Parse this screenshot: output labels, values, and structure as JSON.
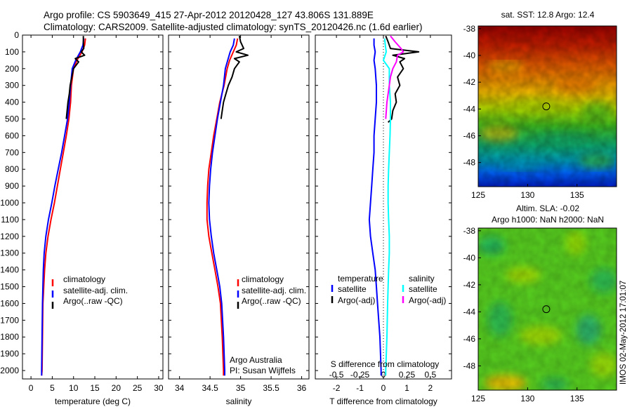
{
  "title": {
    "line1": "Argo profile: CS 5903649_415 27-Apr-2012 20120428_127 43.806S 131.889E",
    "line2": "Climatology: CARS2009. Satellite-adjusted climatology: synTS_20120426.nc (1.6d earlier)"
  },
  "colors": {
    "climatology": "#ff0000",
    "satellite": "#0000ff",
    "argo": "#000000",
    "satellite_salinity": "#00ffff",
    "argo_salinity": "#ff00ff"
  },
  "chart_data": [
    {
      "type": "line",
      "name": "temperature",
      "xlabel": "temperature (deg C)",
      "ylim": [
        2050,
        0
      ],
      "xlim": [
        -2,
        31
      ],
      "xticks": [
        "0",
        "5",
        "10",
        "15",
        "20",
        "25",
        "30"
      ],
      "yticks": [
        "0",
        "100",
        "200",
        "300",
        "400",
        "500",
        "600",
        "700",
        "800",
        "900",
        "1000",
        "1100",
        "1200",
        "1300",
        "1400",
        "1500",
        "1600",
        "1700",
        "1800",
        "1900",
        "2000"
      ],
      "legend": [
        "climatology",
        "satellite-adj. clim.",
        "Argo(..raw -QC)"
      ],
      "series": [
        {
          "name": "climatology",
          "color": "#ff0000",
          "x": [
            12.8,
            12.6,
            12.0,
            10.8,
            10.0,
            9.5,
            9.3,
            8.9,
            8.3,
            7.6,
            6.9,
            6.2,
            5.5,
            4.7,
            4.0,
            3.5,
            3.2,
            3.0,
            2.8,
            2.7,
            2.6,
            2.5
          ],
          "y": [
            20,
            60,
            100,
            150,
            200,
            300,
            400,
            500,
            600,
            700,
            800,
            900,
            1000,
            1100,
            1200,
            1300,
            1400,
            1500,
            1600,
            1800,
            2000,
            2030
          ]
        },
        {
          "name": "satellite-adj. clim.",
          "color": "#0000ff",
          "x": [
            12.4,
            12.2,
            11.6,
            10.5,
            9.7,
            9.3,
            9.0,
            8.6,
            7.9,
            7.2,
            6.4,
            5.6,
            4.9,
            4.1,
            3.5,
            3.1,
            2.9,
            2.8,
            2.7,
            2.6,
            2.5,
            2.5
          ],
          "y": [
            20,
            60,
            100,
            150,
            200,
            300,
            400,
            500,
            600,
            700,
            800,
            900,
            1000,
            1100,
            1200,
            1300,
            1400,
            1500,
            1600,
            1800,
            2000,
            2030
          ]
        },
        {
          "name": "Argo(..raw -QC)",
          "color": "#000000",
          "x": [
            12.3,
            12.3,
            12.4,
            11.8,
            12.6,
            10.4,
            11.2,
            10.0,
            9.6,
            9.2,
            9.0,
            8.7,
            8.5,
            8.3
          ],
          "y": [
            5,
            40,
            80,
            100,
            120,
            140,
            160,
            200,
            250,
            300,
            350,
            400,
            450,
            500
          ]
        }
      ]
    },
    {
      "type": "line",
      "name": "salinity",
      "xlabel": "salinity",
      "ylim": [
        2050,
        0
      ],
      "xlim": [
        33.82,
        36.12
      ],
      "xticks": [
        "34",
        "34.5",
        "35",
        "35.5",
        "36"
      ],
      "legend": [
        "climatology",
        "satellite-adj. clim.",
        "Argo(..raw -QC)"
      ],
      "annotation": [
        "Argo Australia",
        "PI: Susan Wijffels"
      ],
      "series": [
        {
          "name": "climatology",
          "color": "#ff0000",
          "x": [
            34.95,
            34.93,
            34.88,
            34.82,
            34.78,
            34.73,
            34.66,
            34.61,
            34.56,
            34.52,
            34.48,
            34.46,
            34.45,
            34.45,
            34.48,
            34.53,
            34.58,
            34.63,
            34.67,
            34.7,
            34.72,
            34.72
          ],
          "y": [
            20,
            60,
            100,
            150,
            200,
            300,
            400,
            500,
            600,
            700,
            800,
            900,
            1000,
            1100,
            1200,
            1300,
            1400,
            1500,
            1600,
            1800,
            2000,
            2030
          ]
        },
        {
          "name": "satellite-adj. clim.",
          "color": "#0000ff",
          "x": [
            34.9,
            34.88,
            34.83,
            34.79,
            34.75,
            34.72,
            34.67,
            34.62,
            34.58,
            34.54,
            34.51,
            34.49,
            34.48,
            34.49,
            34.52,
            34.56,
            34.61,
            34.66,
            34.69,
            34.72,
            34.74,
            34.74
          ],
          "y": [
            20,
            60,
            100,
            150,
            200,
            300,
            400,
            500,
            600,
            700,
            800,
            900,
            1000,
            1100,
            1200,
            1300,
            1400,
            1500,
            1600,
            1800,
            2000,
            2030
          ]
        },
        {
          "name": "Argo(..raw -QC)",
          "color": "#000000",
          "x": [
            34.98,
            35.0,
            35.05,
            34.93,
            35.12,
            34.9,
            34.98,
            34.9,
            34.86,
            34.8,
            34.76,
            34.72,
            34.7,
            34.68
          ],
          "y": [
            5,
            40,
            80,
            100,
            120,
            140,
            160,
            200,
            250,
            300,
            350,
            400,
            450,
            500
          ]
        }
      ]
    },
    {
      "type": "line",
      "name": "difference",
      "xlabel": "T difference from climatology",
      "top_axis_label": "S difference from climatology",
      "ylim": [
        2050,
        0
      ],
      "xlim": [
        -2.9,
        2.9
      ],
      "xticks": [
        "-2",
        "-1",
        "0",
        "1",
        "2"
      ],
      "top_ticks": [
        "-0.5",
        "-0.25",
        "0",
        "0.25",
        "0.5"
      ],
      "legend_temperature": [
        "temperature",
        "satellite",
        "Argo(-adj)"
      ],
      "legend_salinity": [
        "salinity",
        "satellite",
        "Argo(-adj)"
      ],
      "series": [
        {
          "name": "temperature satellite",
          "color": "#0000ff",
          "x": [
            -0.4,
            -0.4,
            -0.35,
            -0.4,
            -0.35,
            -0.3,
            -0.3,
            -0.35,
            -0.4,
            -0.4,
            -0.45,
            -0.5,
            -0.55,
            -0.6,
            -0.55,
            -0.45,
            -0.35,
            -0.3,
            -0.25,
            -0.15,
            -0.1,
            -0.1
          ],
          "y": [
            20,
            60,
            100,
            150,
            200,
            300,
            400,
            500,
            600,
            700,
            800,
            900,
            1000,
            1100,
            1200,
            1300,
            1400,
            1500,
            1600,
            1800,
            2000,
            2030
          ]
        },
        {
          "name": "temperature Argo(-adj)",
          "color": "#000000",
          "x": [
            0.1,
            0.2,
            0.3,
            1.5,
            0.4,
            0.9,
            0.7,
            0.85,
            0.6,
            0.7,
            0.5,
            0.55,
            0.4,
            0.35,
            0.2
          ],
          "y": [
            5,
            40,
            80,
            100,
            120,
            140,
            160,
            200,
            250,
            300,
            350,
            400,
            450,
            500,
            520
          ]
        },
        {
          "name": "salinity satellite",
          "color": "#00ffff",
          "x": [
            0.05,
            0.08,
            0.12,
            0.0,
            0.25,
            0.25,
            0.3,
            0.3,
            0.28,
            0.25,
            0.22,
            0.2,
            0.2,
            0.22,
            0.25,
            0.25,
            0.22,
            0.2,
            0.18,
            0.15,
            0.1,
            0.1
          ],
          "y": [
            20,
            60,
            100,
            150,
            200,
            300,
            400,
            500,
            600,
            700,
            800,
            900,
            1000,
            1100,
            1200,
            1300,
            1400,
            1500,
            1600,
            1800,
            2000,
            2030
          ]
        },
        {
          "name": "salinity Argo(-adj)",
          "color": "#ff00ff",
          "x": [
            0.3,
            0.5,
            0.75,
            0.85,
            0.6,
            0.55,
            0.4,
            0.3,
            0.25,
            0.15,
            0.1
          ],
          "y": [
            5,
            40,
            80,
            100,
            120,
            160,
            200,
            250,
            300,
            400,
            500
          ]
        }
      ]
    },
    {
      "type": "heatmap",
      "name": "sst-map",
      "title": "sat. SST: 12.8 Argo: 12.4",
      "xlim": [
        125,
        139
      ],
      "ylim": [
        -49.8,
        -37.8
      ],
      "xticks": [
        "125",
        "130",
        "135"
      ],
      "yticks": [
        "-38",
        "-40",
        "-42",
        "-44",
        "-46",
        "-48"
      ],
      "marker": {
        "lon": 131.889,
        "lat": -43.806
      },
      "field": "SST, warm (red) in north to cold (blue) in south"
    },
    {
      "type": "heatmap",
      "name": "sla-map",
      "title": "Altim. SLA: -0.02",
      "subtitle": "Argo h1000: NaN h2000: NaN",
      "xlim": [
        125,
        139
      ],
      "ylim": [
        -49.8,
        -37.8
      ],
      "xticks": [
        "125",
        "130",
        "135"
      ],
      "yticks": [
        "-38",
        "-40",
        "-42",
        "-44",
        "-46",
        "-48"
      ],
      "marker": {
        "lon": 131.889,
        "lat": -43.806
      },
      "field": "Sea level anomaly, mostly near zero (green)"
    }
  ],
  "footer": {
    "stamp": "IMOS 02-May-2012 17:01:07"
  }
}
